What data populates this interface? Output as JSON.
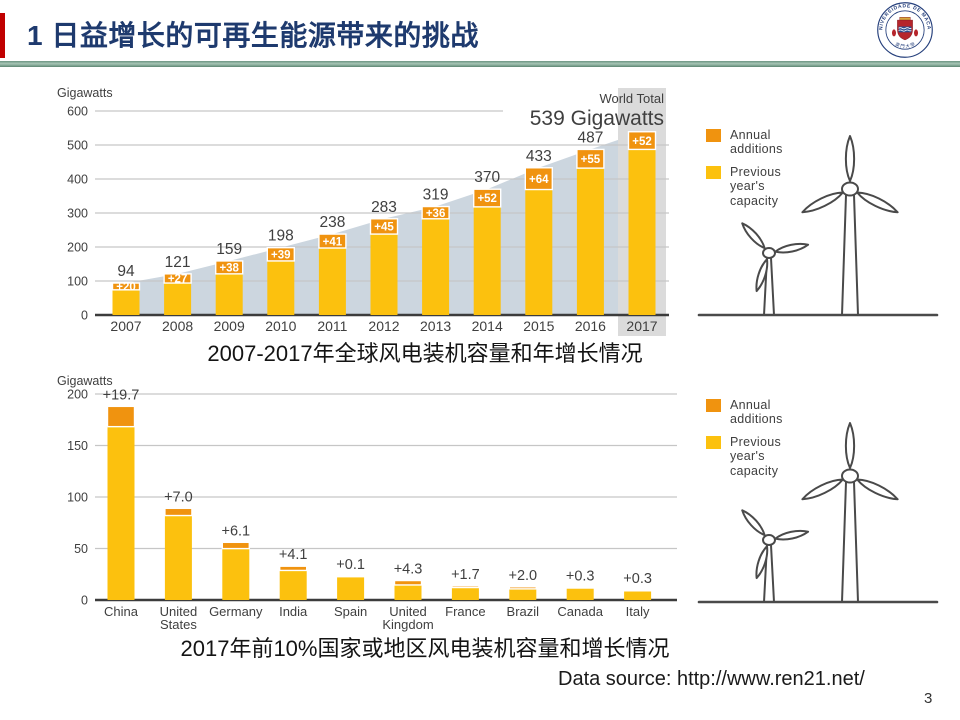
{
  "slide": {
    "number": "3"
  },
  "header": {
    "title": "1 日益增长的可再生能源带来的挑战",
    "logo_name": "university-of-macau-seal"
  },
  "legend": {
    "annual_additions": "Annual additions",
    "previous_capacity": "Previous year's capacity"
  },
  "captions": {
    "chart1": "2007-2017年全球风电装机容量和年增长情况",
    "chart2": "2017年前10%国家或地区风电装机容量和增长情况"
  },
  "footer": {
    "data_source": "Data source: http://www.ren21.net/"
  },
  "colors": {
    "accent_red": "#c00000",
    "title_navy": "#1e3a6e",
    "divider_green": "#6b9482",
    "bar_yellow": "#fcc10e",
    "bar_orange": "#f0930f",
    "area_bluegray": "#ccd6df",
    "highlight_gray": "#dbdbdb",
    "grid_gray": "#c6c6c6",
    "axis_dark": "#3c3c3c",
    "label_gray": "#3f3f3f",
    "turbine_stroke": "#4a4a4a"
  },
  "chart_data": [
    {
      "id": "global-wind-capacity-2007-2017",
      "type": "bar",
      "stacked": true,
      "unit_label": "Gigawatts",
      "categories": [
        "2007",
        "2008",
        "2009",
        "2010",
        "2011",
        "2012",
        "2013",
        "2014",
        "2015",
        "2016",
        "2017"
      ],
      "series": [
        {
          "name": "Previous year's capacity",
          "values": [
            74,
            94,
            121,
            159,
            197,
            238,
            283,
            318,
            369,
            432,
            487
          ]
        },
        {
          "name": "Annual additions",
          "values": [
            20,
            27,
            38,
            39,
            41,
            45,
            36,
            52,
            64,
            55,
            52
          ]
        }
      ],
      "totals": [
        94,
        121,
        159,
        198,
        238,
        283,
        319,
        370,
        433,
        487,
        539
      ],
      "total_labels": [
        "94",
        "121",
        "159",
        "198",
        "238",
        "283",
        "319",
        "370",
        "433",
        "487",
        ""
      ],
      "addition_labels": [
        "+20",
        "+27",
        "+38",
        "+39",
        "+41",
        "+45",
        "+36",
        "+52",
        "+64",
        "+55",
        "+52"
      ],
      "annotation": {
        "line1": "World Total",
        "line2": "539 Gigawatts"
      },
      "ylabel": "Gigawatts",
      "ylim": [
        0,
        600
      ],
      "ytick_step": 100,
      "grid": true,
      "legend_position": "right",
      "show_area_silhouette": true,
      "highlight_last_category": true
    },
    {
      "id": "top-10-countries-wind-2017",
      "type": "bar",
      "stacked": true,
      "unit_label": "Gigawatts",
      "categories": [
        "China",
        "United States",
        "Germany",
        "India",
        "Spain",
        "United Kingdom",
        "France",
        "Brazil",
        "Canada",
        "Italy"
      ],
      "series": [
        {
          "name": "Previous year's capacity",
          "values": [
            168.3,
            82.0,
            49.9,
            28.7,
            23.1,
            14.6,
            12.1,
            10.8,
            11.9,
            9.2
          ]
        },
        {
          "name": "Annual additions",
          "values": [
            19.7,
            7.0,
            6.1,
            4.1,
            0.1,
            4.3,
            1.7,
            2.0,
            0.3,
            0.3
          ]
        }
      ],
      "totals": [
        188,
        89,
        56,
        32.8,
        23.2,
        18.9,
        13.8,
        12.8,
        12.2,
        9.5
      ],
      "bar_labels": [
        "+19.7",
        "+7.0",
        "+6.1",
        "+4.1",
        "+0.1",
        "+4.3",
        "+1.7",
        "+2.0",
        "+0.3",
        "+0.3"
      ],
      "ylabel": "Gigawatts",
      "ylim": [
        0,
        200
      ],
      "ytick_step": 50,
      "grid": true,
      "legend_position": "right"
    }
  ]
}
